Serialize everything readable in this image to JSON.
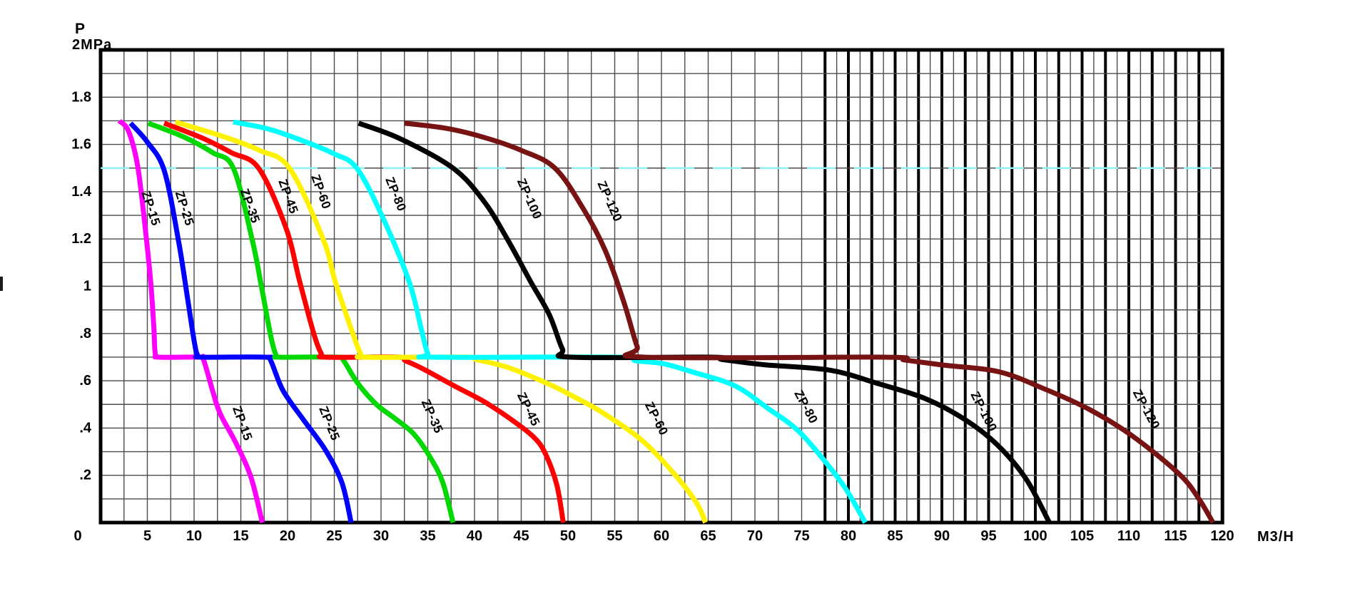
{
  "chart_data": {
    "type": "line",
    "ylabel_symbol": "P",
    "ylabel_unit": "2MPa",
    "xlabel": "M3/H",
    "xlim": [
      0,
      120
    ],
    "ylim": [
      0,
      2.0
    ],
    "x_tick_labels": [
      "0",
      "5",
      "10",
      "15",
      "20",
      "25",
      "30",
      "35",
      "40",
      "45",
      "50",
      "55",
      "60",
      "65",
      "70",
      "75",
      "80",
      "85",
      "90",
      "95",
      "100",
      "105",
      "110",
      "115",
      "120"
    ],
    "y_tick_labels": [
      {
        "value": 1.8,
        "label": "1.8"
      },
      {
        "value": 1.6,
        "label": "1.6"
      },
      {
        "value": 1.4,
        "label": "1.4"
      },
      {
        "value": 1.2,
        "label": "1.2"
      },
      {
        "value": 1.0,
        "label": "1"
      },
      {
        "value": 0.8,
        "label": ".8"
      },
      {
        "value": 0.6,
        "label": ".6"
      },
      {
        "value": 0.4,
        "label": ".4"
      },
      {
        "value": 0.2,
        "label": ".2"
      }
    ],
    "origin_label": "0",
    "grid": {
      "x_minor_step": 2.5,
      "x_dense_start": 77.5,
      "x_dense_step": 1.25,
      "y_minor_step": 0.1,
      "dense_thick_every": 2.5,
      "grid_on": true
    },
    "reference_line": {
      "p": 1.5,
      "style": "dashed",
      "color": "#8ef2f2"
    },
    "style": {
      "grid_thin_color": "#4c4c4c",
      "grid_thick_color": "#000000",
      "border_color": "#000000",
      "background": "#ffffff",
      "curve_width": 7
    },
    "series": [
      {
        "name": "ZP-15",
        "color": "#FF00FF",
        "points": [
          [
            2.0,
            1.7
          ],
          [
            3.0,
            1.655
          ],
          [
            4.0,
            1.5
          ],
          [
            4.9,
            1.2
          ],
          [
            5.4,
            1.0
          ],
          [
            5.7,
            0.82
          ],
          [
            5.85,
            0.715
          ],
          [
            6.3,
            0.7
          ],
          [
            10.5,
            0.7
          ],
          [
            11.0,
            0.69
          ],
          [
            12.0,
            0.555
          ],
          [
            12.8,
            0.46
          ],
          [
            14.5,
            0.335
          ],
          [
            16.1,
            0.19
          ],
          [
            17.3,
            0.0
          ]
        ],
        "labels": [
          {
            "text": "ZP-15",
            "x": 5.4,
            "p": 1.33,
            "angle": 72,
            "color": "#000000"
          },
          {
            "text": "ZP-15",
            "x": 15.2,
            "p": 0.42,
            "angle": 70,
            "color": "#000000"
          }
        ]
      },
      {
        "name": "ZP-25",
        "color": "#0000FF",
        "points": [
          [
            3.2,
            1.69
          ],
          [
            5.0,
            1.61
          ],
          [
            6.8,
            1.49
          ],
          [
            8.3,
            1.2
          ],
          [
            9.3,
            0.95
          ],
          [
            10.0,
            0.77
          ],
          [
            10.35,
            0.71
          ],
          [
            10.8,
            0.7
          ],
          [
            17.6,
            0.7
          ],
          [
            18.2,
            0.685
          ],
          [
            19.5,
            0.56
          ],
          [
            21.6,
            0.44
          ],
          [
            24.0,
            0.31
          ],
          [
            25.8,
            0.17
          ],
          [
            26.8,
            0.0
          ]
        ],
        "labels": [
          {
            "text": "ZP-25",
            "x": 9.0,
            "p": 1.33,
            "angle": 72,
            "color": "#000000"
          },
          {
            "text": "ZP-25",
            "x": 24.5,
            "p": 0.42,
            "angle": 68,
            "color": "#000000"
          }
        ]
      },
      {
        "name": "ZP-35",
        "color": "#00D800",
        "points": [
          [
            5.1,
            1.69
          ],
          [
            9.0,
            1.63
          ],
          [
            12.0,
            1.565
          ],
          [
            14.2,
            1.5
          ],
          [
            16.2,
            1.2
          ],
          [
            17.2,
            1.0
          ],
          [
            18.2,
            0.79
          ],
          [
            18.75,
            0.71
          ],
          [
            19.2,
            0.7
          ],
          [
            25.4,
            0.7
          ],
          [
            26.0,
            0.685
          ],
          [
            27.5,
            0.59
          ],
          [
            29.5,
            0.5
          ],
          [
            31.5,
            0.44
          ],
          [
            33.5,
            0.375
          ],
          [
            35.2,
            0.28
          ],
          [
            36.6,
            0.17
          ],
          [
            37.7,
            0.0
          ]
        ],
        "labels": [
          {
            "text": "ZP-35",
            "x": 16.0,
            "p": 1.34,
            "angle": 70,
            "color": "#000000"
          },
          {
            "text": "ZP-35",
            "x": 35.5,
            "p": 0.45,
            "angle": 66,
            "color": "#000000"
          }
        ]
      },
      {
        "name": "ZP-45",
        "color": "#FF0000",
        "points": [
          [
            6.8,
            1.69
          ],
          [
            11.0,
            1.625
          ],
          [
            14.0,
            1.565
          ],
          [
            16.9,
            1.5
          ],
          [
            19.8,
            1.25
          ],
          [
            21.3,
            1.02
          ],
          [
            22.8,
            0.8
          ],
          [
            23.6,
            0.715
          ],
          [
            24.1,
            0.7
          ],
          [
            31.8,
            0.7
          ],
          [
            32.6,
            0.685
          ],
          [
            34.5,
            0.65
          ],
          [
            38.0,
            0.575
          ],
          [
            41.1,
            0.51
          ],
          [
            44.5,
            0.42
          ],
          [
            46.5,
            0.355
          ],
          [
            47.6,
            0.29
          ],
          [
            48.8,
            0.16
          ],
          [
            49.5,
            0.0
          ]
        ],
        "labels": [
          {
            "text": "ZP-45",
            "x": 20.1,
            "p": 1.38,
            "angle": 70,
            "color": "#000000"
          },
          {
            "text": "ZP-45",
            "x": 45.8,
            "p": 0.48,
            "angle": 64,
            "color": "#000000"
          }
        ]
      },
      {
        "name": "ZP-60",
        "color": "#FFF200",
        "points": [
          [
            8.0,
            1.695
          ],
          [
            13.0,
            1.635
          ],
          [
            17.0,
            1.575
          ],
          [
            20.2,
            1.5
          ],
          [
            23.8,
            1.2
          ],
          [
            25.1,
            1.02
          ],
          [
            26.8,
            0.82
          ],
          [
            27.8,
            0.715
          ],
          [
            28.4,
            0.7
          ],
          [
            39.3,
            0.7
          ],
          [
            40.2,
            0.69
          ],
          [
            43.7,
            0.655
          ],
          [
            48.0,
            0.585
          ],
          [
            51.0,
            0.525
          ],
          [
            53.9,
            0.46
          ],
          [
            58.0,
            0.345
          ],
          [
            61.5,
            0.2
          ],
          [
            63.8,
            0.08
          ],
          [
            64.7,
            0.0
          ]
        ],
        "labels": [
          {
            "text": "ZP-60",
            "x": 23.6,
            "p": 1.4,
            "angle": 70,
            "color": "#000000"
          },
          {
            "text": "ZP-60",
            "x": 59.5,
            "p": 0.44,
            "angle": 63,
            "color": "#FFE400"
          }
        ]
      },
      {
        "name": "ZP-80",
        "color": "#00FFFF",
        "points": [
          [
            14.2,
            1.695
          ],
          [
            18.0,
            1.665
          ],
          [
            22.0,
            1.61
          ],
          [
            25.0,
            1.56
          ],
          [
            27.4,
            1.5
          ],
          [
            30.2,
            1.29
          ],
          [
            33.0,
            1.02
          ],
          [
            34.3,
            0.82
          ],
          [
            35.0,
            0.715
          ],
          [
            35.7,
            0.7
          ],
          [
            55.8,
            0.7
          ],
          [
            57.2,
            0.685
          ],
          [
            60.2,
            0.672
          ],
          [
            63.5,
            0.635
          ],
          [
            67.9,
            0.578
          ],
          [
            71.5,
            0.48
          ],
          [
            74.0,
            0.41
          ],
          [
            76.0,
            0.33
          ],
          [
            79.5,
            0.155
          ],
          [
            81.8,
            0.0
          ]
        ],
        "labels": [
          {
            "text": "ZP-80",
            "x": 31.6,
            "p": 1.39,
            "angle": 68,
            "color": "#000000"
          },
          {
            "text": "ZP-80",
            "x": 75.5,
            "p": 0.49,
            "angle": 62,
            "color": "#000000"
          }
        ]
      },
      {
        "name": "ZP-100",
        "color": "#000000",
        "points": [
          [
            27.6,
            1.69
          ],
          [
            32.0,
            1.625
          ],
          [
            37.7,
            1.5
          ],
          [
            41.0,
            1.36
          ],
          [
            43.5,
            1.2
          ],
          [
            46.0,
            1.02
          ],
          [
            48.0,
            0.88
          ],
          [
            49.4,
            0.735
          ],
          [
            50.3,
            0.7
          ],
          [
            65.3,
            0.7
          ],
          [
            66.5,
            0.69
          ],
          [
            71.0,
            0.668
          ],
          [
            78.0,
            0.645
          ],
          [
            83.0,
            0.59
          ],
          [
            88.2,
            0.525
          ],
          [
            92.5,
            0.435
          ],
          [
            95.9,
            0.33
          ],
          [
            99.0,
            0.185
          ],
          [
            101.5,
            0.0
          ]
        ],
        "labels": [
          {
            "text": "ZP-100",
            "x": 45.9,
            "p": 1.37,
            "angle": 66,
            "color": "#000000"
          },
          {
            "text": "ZP-100",
            "x": 94.5,
            "p": 0.47,
            "angle": 63,
            "color": "#000000"
          }
        ]
      },
      {
        "name": "ZP-120",
        "color": "#771313",
        "points": [
          [
            32.5,
            1.69
          ],
          [
            37.0,
            1.668
          ],
          [
            41.0,
            1.63
          ],
          [
            45.0,
            1.575
          ],
          [
            48.6,
            1.5
          ],
          [
            51.6,
            1.33
          ],
          [
            54.0,
            1.15
          ],
          [
            56.0,
            0.93
          ],
          [
            57.4,
            0.745
          ],
          [
            58.2,
            0.7
          ],
          [
            83.8,
            0.7
          ],
          [
            86.0,
            0.688
          ],
          [
            90.0,
            0.667
          ],
          [
            96.1,
            0.638
          ],
          [
            101.0,
            0.565
          ],
          [
            105.8,
            0.478
          ],
          [
            110.4,
            0.366
          ],
          [
            115.4,
            0.205
          ],
          [
            117.5,
            0.1
          ],
          [
            119.0,
            0.0
          ]
        ],
        "labels": [
          {
            "text": "ZP-120",
            "x": 54.5,
            "p": 1.36,
            "angle": 66,
            "color": "#000000"
          },
          {
            "text": "ZP-120",
            "x": 111.9,
            "p": 0.48,
            "angle": 62,
            "color": "#000000"
          }
        ]
      }
    ]
  }
}
